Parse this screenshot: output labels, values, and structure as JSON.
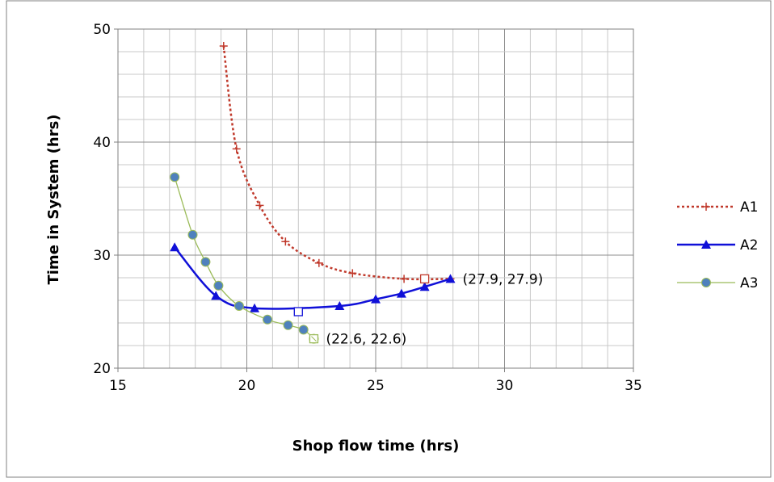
{
  "chart_data": {
    "type": "line",
    "title": "",
    "xlabel": "Shop flow time (hrs)",
    "ylabel": "Time in System (hrs)",
    "xlim": [
      15,
      35
    ],
    "ylim": [
      20,
      50
    ],
    "x_ticks": [
      15,
      20,
      25,
      30,
      35
    ],
    "y_ticks": [
      20,
      30,
      40,
      50
    ],
    "grid": true,
    "legend_position": "right",
    "series": [
      {
        "name": "A1",
        "color": "#c0392b",
        "line_style": "dotted",
        "marker": "plus",
        "points": [
          [
            19.1,
            48.5
          ],
          [
            19.6,
            39.4
          ],
          [
            20.5,
            34.4
          ],
          [
            21.5,
            31.2
          ],
          [
            22.8,
            29.3
          ],
          [
            24.1,
            28.4
          ],
          [
            26.1,
            27.9
          ],
          [
            27.9,
            27.9
          ]
        ]
      },
      {
        "name": "A2",
        "color": "#1010d8",
        "line_style": "solid",
        "marker": "triangle",
        "points": [
          [
            17.2,
            30.7
          ],
          [
            18.8,
            26.4
          ],
          [
            20.3,
            25.3
          ],
          [
            23.6,
            25.5
          ],
          [
            25.0,
            26.1
          ],
          [
            26.0,
            26.6
          ],
          [
            26.9,
            27.2
          ],
          [
            27.9,
            27.9
          ]
        ]
      },
      {
        "name": "A3",
        "color": "#9bbb59",
        "marker_color": "#4f81bd",
        "line_style": "solid",
        "marker": "circle",
        "points": [
          [
            17.2,
            36.9
          ],
          [
            17.9,
            31.8
          ],
          [
            18.4,
            29.4
          ],
          [
            18.9,
            27.3
          ],
          [
            19.7,
            25.5
          ],
          [
            20.8,
            24.3
          ],
          [
            21.6,
            23.8
          ],
          [
            22.2,
            23.4
          ],
          [
            22.6,
            22.6
          ]
        ]
      }
    ],
    "optimal_markers": [
      {
        "series": "A1",
        "x": 26.9,
        "y": 27.9,
        "color": "#c0392b"
      },
      {
        "series": "A2",
        "x": 22.0,
        "y": 25.0,
        "color": "#1010d8"
      },
      {
        "series": "A3",
        "x": 22.6,
        "y": 22.6,
        "color": "#9bbb59"
      }
    ],
    "annotations": [
      {
        "text": "(27.9, 27.9)",
        "x": 27.9,
        "y": 27.9
      },
      {
        "text": "(22.6, 22.6)",
        "x": 22.6,
        "y": 22.6
      }
    ]
  }
}
